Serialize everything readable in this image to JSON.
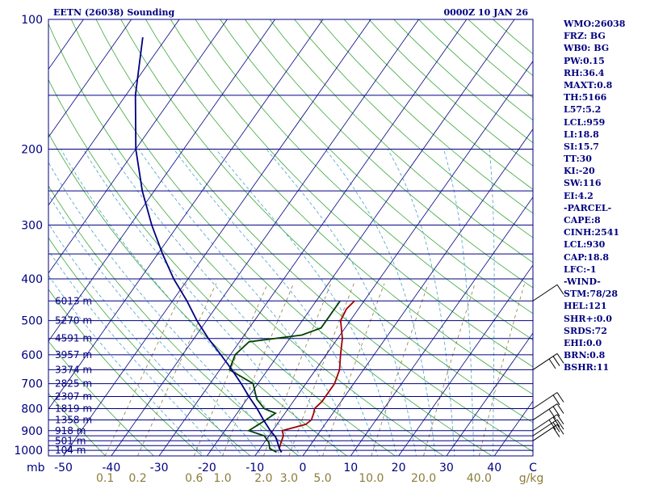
{
  "header": {
    "station": "EETN (26038) Sounding",
    "time": "0000Z 10 JAN 26"
  },
  "indices": [
    "WMO:26038",
    "FRZ: BG",
    "WB0: BG",
    "PW:0.15",
    "RH:36.4",
    "MAXT:0.8",
    "TH:5166",
    "L57:5.2",
    "LCL:959",
    "LI:18.8",
    "SI:15.7",
    "TT:30",
    "KI:-20",
    "SW:116",
    "EI:4.2",
    "-PARCEL-",
    "CAPE:8",
    "CINH:2541",
    "LCL:930",
    "CAP:18.8",
    "LFC:-1",
    "-WIND-",
    "STM:78/28",
    "HEL:121",
    "SHR+:0.0",
    "SRDS:72",
    "EHI:0.0",
    "BRN:0.8",
    "BSHR:11"
  ],
  "chart_data": {
    "type": "skew-t log-p",
    "title": "EETN (26038) Sounding",
    "ylabel": "mb",
    "xlabel": "°C",
    "mixing_ratio_unit": "g/kg",
    "pressure_ticks": [
      100,
      200,
      300,
      400,
      500,
      600,
      700,
      800,
      900,
      1000
    ],
    "pressure_ticks_labels": [
      "100",
      "200",
      "300",
      "400",
      "500",
      "600",
      "700",
      "800",
      "900",
      "1000"
    ],
    "isobars_drawn": [
      100,
      150,
      200,
      250,
      300,
      350,
      400,
      450,
      500,
      550,
      600,
      650,
      700,
      750,
      800,
      850,
      900,
      925,
      950,
      975,
      1000
    ],
    "temp_ticks": [
      -50,
      -40,
      -30,
      -20,
      -10,
      0,
      10,
      20,
      30,
      40
    ],
    "temp_ticks_labels": [
      "-50",
      "-40",
      "-30",
      "-20",
      "-10",
      "0",
      "10",
      "20",
      "30",
      "40"
    ],
    "temp_axis_end_label": "C",
    "mixing_ratio_labels": [
      "0.1",
      "0.2",
      "0.6",
      "1.0",
      "2.0",
      "3.0",
      "5.0",
      "10.0",
      "20.0",
      "40.0"
    ],
    "mixing_ratio_values": [
      0.1,
      0.2,
      0.6,
      1.0,
      2.0,
      3.0,
      5.0,
      10.0,
      20.0,
      40.0
    ],
    "height_labels": [
      {
        "p": 450,
        "label": "6013 m"
      },
      {
        "p": 500,
        "label": "5270 m"
      },
      {
        "p": 550,
        "label": "4591 m"
      },
      {
        "p": 600,
        "label": "3957 m"
      },
      {
        "p": 650,
        "label": "3374 m"
      },
      {
        "p": 700,
        "label": "2825 m"
      },
      {
        "p": 750,
        "label": "2307 m"
      },
      {
        "p": 800,
        "label": "1819 m"
      },
      {
        "p": 850,
        "label": "1358 m"
      },
      {
        "p": 900,
        "label": "918 m"
      },
      {
        "p": 950,
        "label": "501 m"
      },
      {
        "p": 1000,
        "label": "104 m"
      }
    ],
    "series": [
      {
        "name": "temperature",
        "color": "#a00000",
        "points": [
          [
            1010,
            -5
          ],
          [
            990,
            -6
          ],
          [
            960,
            -6.5
          ],
          [
            925,
            -7
          ],
          [
            900,
            -8
          ],
          [
            870,
            -4
          ],
          [
            850,
            -3.5
          ],
          [
            820,
            -4
          ],
          [
            800,
            -4.5
          ],
          [
            770,
            -4
          ],
          [
            750,
            -4
          ],
          [
            720,
            -4
          ],
          [
            700,
            -4
          ],
          [
            650,
            -5
          ],
          [
            600,
            -7
          ],
          [
            550,
            -9
          ],
          [
            500,
            -12
          ],
          [
            470,
            -12.5
          ],
          [
            450,
            -12
          ]
        ]
      },
      {
        "name": "dewpoint",
        "color": "#004000",
        "points": [
          [
            1010,
            -6
          ],
          [
            990,
            -8
          ],
          [
            960,
            -9
          ],
          [
            925,
            -11
          ],
          [
            900,
            -15
          ],
          [
            850,
            -13
          ],
          [
            820,
            -12
          ],
          [
            800,
            -15
          ],
          [
            760,
            -18
          ],
          [
            700,
            -21
          ],
          [
            650,
            -28
          ],
          [
            600,
            -29
          ],
          [
            560,
            -28
          ],
          [
            540,
            -18
          ],
          [
            520,
            -15
          ],
          [
            500,
            -15
          ],
          [
            480,
            -15
          ],
          [
            460,
            -15
          ],
          [
            450,
            -15
          ]
        ]
      },
      {
        "name": "parcel",
        "color": "#000080",
        "points": [
          [
            1010,
            -5
          ],
          [
            990,
            -6
          ],
          [
            960,
            -7.2
          ],
          [
            930,
            -8.5
          ],
          [
            900,
            -10.5
          ],
          [
            850,
            -13.5
          ],
          [
            800,
            -16.5
          ],
          [
            750,
            -20
          ],
          [
            700,
            -23.5
          ],
          [
            650,
            -27.5
          ],
          [
            600,
            -32
          ],
          [
            550,
            -37
          ],
          [
            500,
            -42
          ],
          [
            450,
            -47
          ],
          [
            400,
            -53
          ],
          [
            350,
            -59
          ],
          [
            300,
            -65.5
          ],
          [
            250,
            -72.5
          ],
          [
            200,
            -80
          ],
          [
            150,
            -88
          ],
          [
            110,
            -95
          ]
        ]
      }
    ]
  }
}
